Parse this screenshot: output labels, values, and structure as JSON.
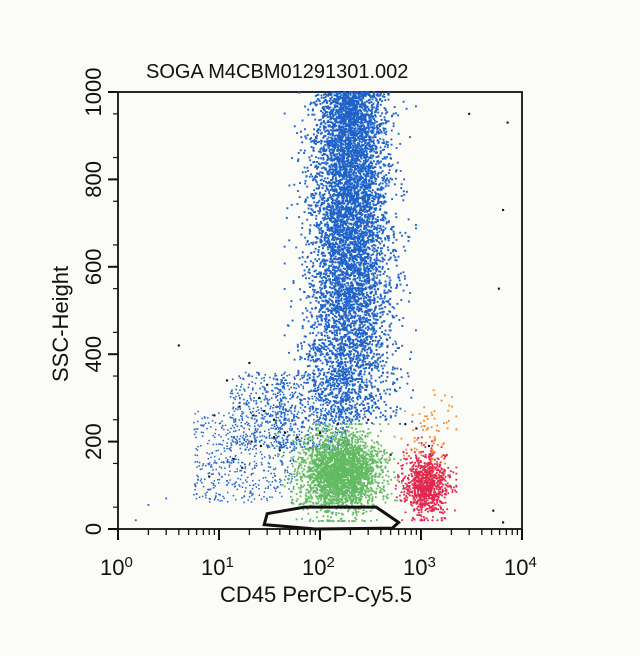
{
  "chart_data": {
    "type": "scatter",
    "title": "SOGA M4CBM01291301.002",
    "xlabel": "CD45 PerCP-Cy5.5",
    "ylabel": "SSC-Height",
    "x_scale": "log",
    "xlim": [
      1,
      10000
    ],
    "ylim": [
      0,
      1000
    ],
    "x_ticks": [
      {
        "value": 1,
        "base": "10",
        "exp": "0"
      },
      {
        "value": 10,
        "base": "10",
        "exp": "1"
      },
      {
        "value": 100,
        "base": "10",
        "exp": "2"
      },
      {
        "value": 1000,
        "base": "10",
        "exp": "3"
      },
      {
        "value": 10000,
        "base": "10",
        "exp": "4"
      }
    ],
    "y_ticks": [
      "0",
      "200",
      "400",
      "600",
      "800",
      "1000"
    ],
    "grid": false,
    "colors": {
      "granulocytes": "#1f63c9",
      "lymphocytes": "#62ba63",
      "monocytes": "#e2274f",
      "transition": "#f08a2a",
      "other": "#111111",
      "gate": "#111111"
    },
    "series": [
      {
        "key": "granulocytes",
        "point_count": 6500,
        "x_log_center": 2.3,
        "x_log_spread": 0.2,
        "y_range": [
          240,
          1000
        ],
        "outlier_points": [
          [
            18,
            130
          ],
          [
            22,
            100
          ],
          [
            12,
            110
          ],
          [
            8,
            90
          ],
          [
            6,
            80
          ],
          [
            3,
            70
          ],
          [
            1.5,
            20
          ],
          [
            2,
            55
          ]
        ]
      },
      {
        "key": "lymphocytes",
        "point_count": 2800,
        "x_log_center": 2.2,
        "x_log_spread": 0.2,
        "y_center": 130,
        "y_spread": 45
      },
      {
        "key": "monocytes",
        "point_count": 900,
        "x_log_center": 3.05,
        "x_log_spread": 0.11,
        "y_center": 100,
        "y_spread": 35
      },
      {
        "key": "transition",
        "point_count": 80,
        "x_log_center": 3.1,
        "x_log_spread": 0.12,
        "y_center": 220,
        "y_spread": 45
      },
      {
        "key": "other",
        "points": [
          [
            4,
            420
          ],
          [
            30,
            330
          ],
          [
            20,
            380
          ],
          [
            25,
            300
          ],
          [
            35,
            250
          ],
          [
            45,
            220
          ],
          [
            60,
            210
          ],
          [
            100,
            220
          ],
          [
            150,
            240
          ],
          [
            300,
            250
          ],
          [
            700,
            240
          ],
          [
            900,
            230
          ],
          [
            3000,
            950
          ],
          [
            7200,
            930
          ],
          [
            6500,
            730
          ],
          [
            5900,
            550
          ],
          [
            1200,
            190
          ],
          [
            500,
            170
          ],
          [
            16,
            280
          ],
          [
            22,
            260
          ],
          [
            28,
            270
          ],
          [
            8,
            120
          ],
          [
            12,
            340
          ],
          [
            9,
            260
          ],
          [
            14,
            160
          ],
          [
            17,
            140
          ],
          [
            21,
            200
          ],
          [
            26,
            190
          ],
          [
            35,
            210
          ],
          [
            40,
            180
          ],
          [
            6500,
            15
          ],
          [
            5200,
            42
          ]
        ]
      }
    ],
    "gate_polygon": [
      [
        28,
        10
      ],
      [
        30,
        35
      ],
      [
        70,
        50
      ],
      [
        360,
        50
      ],
      [
        600,
        15
      ],
      [
        520,
        2
      ],
      [
        90,
        0
      ]
    ]
  }
}
